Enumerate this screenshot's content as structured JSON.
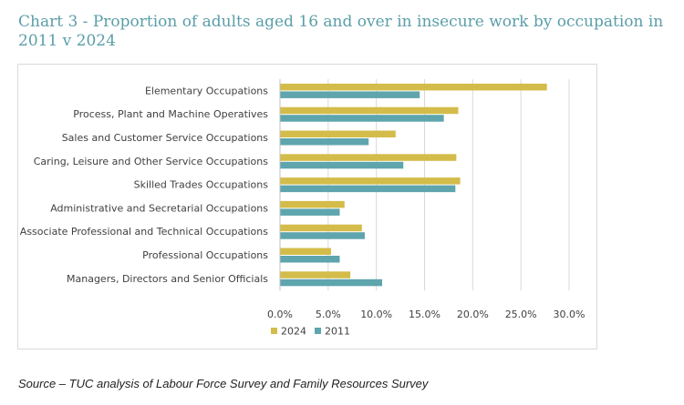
{
  "page": {
    "title": "Chart 3 - Proportion of adults aged 16 and over in insecure work by occupation in 2011 v 2024",
    "source": "Source – TUC analysis of Labour Force Survey and Family Resources Survey"
  },
  "chart_data": {
    "type": "bar",
    "orientation": "horizontal",
    "title": "",
    "xlabel": "",
    "ylabel": "",
    "categories": [
      "Elementary Occupations",
      "Process, Plant and Machine Operatives",
      "Sales and Customer Service Occupations",
      "Caring, Leisure and Other Service Occupations",
      "Skilled Trades Occupations",
      "Administrative and Secretarial Occupations",
      "Associate Professional and Technical Occupations",
      "Professional Occupations",
      "Managers, Directors and Senior Officials"
    ],
    "series": [
      {
        "name": "2024",
        "color": "#d4bc4a",
        "values": [
          27.7,
          18.5,
          12.0,
          18.3,
          18.7,
          6.7,
          8.5,
          5.3,
          7.3
        ]
      },
      {
        "name": "2011",
        "color": "#5ea5ad",
        "values": [
          14.5,
          17.0,
          9.2,
          12.8,
          18.2,
          6.2,
          8.8,
          6.2,
          10.6
        ]
      }
    ],
    "xlim": [
      0,
      30
    ],
    "xticks": [
      "0.0%",
      "5.0%",
      "10.0%",
      "15.0%",
      "20.0%",
      "25.0%",
      "30.0%"
    ],
    "xtick_values": [
      0,
      5,
      10,
      15,
      20,
      25,
      30
    ],
    "grid": true,
    "legend_position": "bottom"
  }
}
